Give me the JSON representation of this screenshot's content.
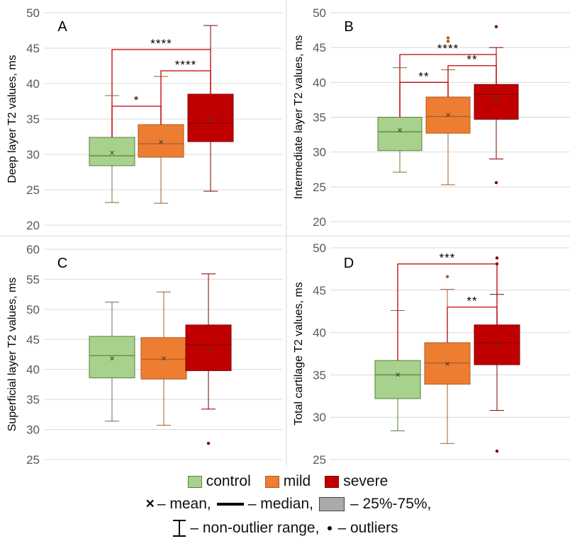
{
  "chart_data": [
    {
      "type": "box",
      "panel_label": "A",
      "ylabel": "Deep layer T2 values, ms",
      "ylim": [
        20,
        50
      ],
      "yticks": [
        20,
        25,
        30,
        35,
        40,
        45,
        50
      ],
      "groups": [
        {
          "name": "control",
          "min": 23.2,
          "q1": 28.4,
          "median": 29.8,
          "q3": 32.4,
          "max": 38.3,
          "mean": 30.2,
          "outliers": []
        },
        {
          "name": "mild",
          "min": 23.1,
          "q1": 29.6,
          "median": 31.5,
          "q3": 34.2,
          "max": 41.0,
          "mean": 31.7,
          "outliers": []
        },
        {
          "name": "severe",
          "min": 24.8,
          "q1": 31.8,
          "median": 34.4,
          "q3": 38.5,
          "max": 48.2,
          "mean": 34.9,
          "outliers": []
        }
      ],
      "significance": [
        {
          "from": "control",
          "to": "mild",
          "label": "*",
          "level": 36.8
        },
        {
          "from": "mild",
          "to": "severe",
          "label": "****",
          "level": 41.8
        },
        {
          "from": "control",
          "to": "severe",
          "label": "****",
          "level": 44.8
        }
      ]
    },
    {
      "type": "box",
      "panel_label": "B",
      "ylabel": "Intermediate layer T2 values, ms",
      "ylim": [
        20,
        50
      ],
      "yticks": [
        20,
        25,
        30,
        35,
        40,
        45,
        50
      ],
      "groups": [
        {
          "name": "control",
          "min": 27.1,
          "q1": 30.2,
          "median": 32.9,
          "q3": 35.0,
          "max": 42.1,
          "mean": 33.1,
          "outliers": []
        },
        {
          "name": "mild",
          "min": 25.3,
          "q1": 32.7,
          "median": 35.1,
          "q3": 37.9,
          "max": 41.8,
          "mean": 35.3,
          "outliers": [
            45.9,
            46.4
          ]
        },
        {
          "name": "severe",
          "min": 29.0,
          "q1": 34.7,
          "median": 38.3,
          "q3": 39.7,
          "max": 45.0,
          "mean": 37.6,
          "outliers": [
            48.0,
            25.6
          ]
        }
      ],
      "significance": [
        {
          "from": "control",
          "to": "mild",
          "label": "**",
          "level": 40.0
        },
        {
          "from": "mild",
          "to": "severe",
          "label": "**",
          "level": 42.4
        },
        {
          "from": "control",
          "to": "severe",
          "label": "****",
          "level": 44.0
        }
      ]
    },
    {
      "type": "box",
      "panel_label": "C",
      "ylabel": "Superficial layer T2 values, ms",
      "ylim": [
        25,
        60
      ],
      "yticks": [
        25,
        30,
        35,
        40,
        45,
        50,
        55,
        60
      ],
      "groups": [
        {
          "name": "control",
          "min": 31.4,
          "q1": 38.6,
          "median": 42.3,
          "q3": 45.5,
          "max": 51.2,
          "mean": 41.8,
          "outliers": []
        },
        {
          "name": "mild",
          "min": 30.7,
          "q1": 38.4,
          "median": 41.7,
          "q3": 45.3,
          "max": 52.9,
          "mean": 41.8,
          "outliers": []
        },
        {
          "name": "severe",
          "min": 33.4,
          "q1": 39.8,
          "median": 44.1,
          "q3": 47.4,
          "max": 55.9,
          "mean": 43.0,
          "outliers": [
            27.7
          ]
        }
      ],
      "significance": []
    },
    {
      "type": "box",
      "panel_label": "D",
      "ylabel": "Total cartilage T2 values, ms",
      "ylim": [
        25,
        50
      ],
      "yticks": [
        25,
        30,
        35,
        40,
        45,
        50
      ],
      "groups": [
        {
          "name": "control",
          "min": 28.4,
          "q1": 32.2,
          "median": 35.0,
          "q3": 36.7,
          "max": 42.6,
          "mean": 35.0,
          "outliers": []
        },
        {
          "name": "mild",
          "min": 26.9,
          "q1": 33.9,
          "median": 36.4,
          "q3": 38.8,
          "max": 45.1,
          "mean": 36.3,
          "outliers": [
            46.6
          ]
        },
        {
          "name": "severe",
          "min": 30.8,
          "q1": 36.2,
          "median": 38.8,
          "q3": 40.9,
          "max": 44.5,
          "mean": 38.6,
          "outliers": [
            48.1,
            48.8,
            26.0
          ]
        }
      ],
      "significance": [
        {
          "from": "mild",
          "to": "severe",
          "label": "**",
          "level": 43.0
        },
        {
          "from": "control",
          "to": "severe",
          "label": "***",
          "level": 48.1
        }
      ]
    }
  ],
  "colors": {
    "control_fill": "#a9d18e",
    "control_stroke": "#548235",
    "mild_fill": "#ed7d31",
    "mild_stroke": "#ae5a21",
    "severe_fill": "#c00000",
    "severe_stroke": "#7f0000",
    "bracket": "#c00000",
    "grid": "#d9d9d9",
    "axis_text": "#595959"
  },
  "legend": {
    "groups": [
      {
        "key": "control",
        "label": "control"
      },
      {
        "key": "mild",
        "label": "mild"
      },
      {
        "key": "severe",
        "label": "severe"
      }
    ],
    "mean_symbol": "×",
    "mean_text": "– mean,",
    "median_text": "– median,",
    "box_text": "– 25%-75%,",
    "whisker_text": "– non-outlier range,",
    "outlier_symbol": "•",
    "outlier_text": "– outliers"
  }
}
